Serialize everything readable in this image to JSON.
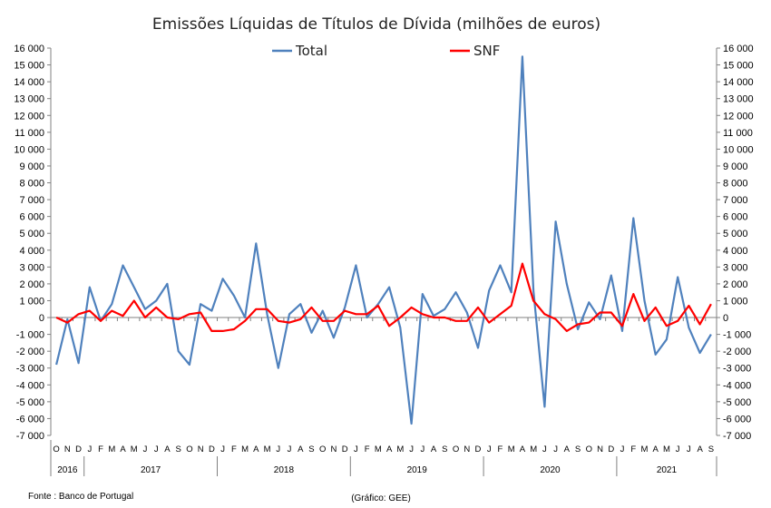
{
  "chart_data": {
    "type": "line",
    "title": "Emissões Líquidas de Títulos de Dívida (milhões de euros)",
    "source": "Fonte : Banco de Portugal",
    "credit": "(Gráfico: GEE)",
    "ylim": [
      -7000,
      16000
    ],
    "y_ticks": [
      16000,
      15000,
      14000,
      13000,
      12000,
      11000,
      10000,
      9000,
      8000,
      7000,
      6000,
      5000,
      4000,
      3000,
      2000,
      1000,
      0,
      -1000,
      -2000,
      -3000,
      -4000,
      -5000,
      -6000,
      -7000
    ],
    "y_tick_labels": [
      "16 000",
      "15 000",
      "14 000",
      "13 000",
      "12 000",
      "11 000",
      "10 000",
      "9 000",
      "8 000",
      "7 000",
      "6 000",
      "5 000",
      "4 000",
      "3 000",
      "2 000",
      "1 000",
      "0",
      "-1 000",
      "-2 000",
      "-3 000",
      "-4 000",
      "-5 000",
      "-6 000",
      "-7 000"
    ],
    "grid": false,
    "legend": "top-center",
    "categories": [
      "O",
      "N",
      "D",
      "J",
      "F",
      "M",
      "A",
      "M",
      "J",
      "J",
      "A",
      "S",
      "O",
      "N",
      "D",
      "J",
      "F",
      "M",
      "A",
      "M",
      "J",
      "J",
      "A",
      "S",
      "O",
      "N",
      "D",
      "J",
      "F",
      "M",
      "A",
      "M",
      "J",
      "J",
      "A",
      "S",
      "O",
      "N",
      "D",
      "J",
      "F",
      "M",
      "A",
      "M",
      "J",
      "J",
      "A",
      "S",
      "O",
      "N",
      "D",
      "J",
      "F",
      "M",
      "A",
      "M",
      "J",
      "J",
      "A",
      "S"
    ],
    "years": [
      {
        "label": "2016",
        "start": 0,
        "count": 3
      },
      {
        "label": "2017",
        "start": 3,
        "count": 12
      },
      {
        "label": "2018",
        "start": 15,
        "count": 12
      },
      {
        "label": "2019",
        "start": 27,
        "count": 12
      },
      {
        "label": "2020",
        "start": 39,
        "count": 12
      },
      {
        "label": "2021",
        "start": 51,
        "count": 9
      }
    ],
    "series": [
      {
        "name": "Total",
        "color": "#4f81bd",
        "values": [
          -2800,
          -100,
          -2700,
          1800,
          -200,
          800,
          3100,
          1800,
          500,
          1000,
          2000,
          -2000,
          -2800,
          800,
          400,
          2300,
          1300,
          0,
          4400,
          200,
          -3000,
          200,
          800,
          -900,
          400,
          -1200,
          600,
          3100,
          0,
          800,
          1800,
          -600,
          -6300,
          1400,
          100,
          500,
          1500,
          300,
          -1800,
          1600,
          3100,
          1500,
          15500,
          1600,
          -5300,
          5700,
          2000,
          -700,
          900,
          -100,
          2500,
          -800,
          5900,
          1000,
          -2200,
          -1300,
          2400,
          -600,
          -2100,
          -1000
        ]
      },
      {
        "name": "SNF",
        "color": "#ff0000",
        "values": [
          0,
          -300,
          200,
          400,
          -200,
          400,
          100,
          1000,
          0,
          600,
          0,
          -100,
          200,
          300,
          -800,
          -800,
          -700,
          -200,
          500,
          500,
          -200,
          -300,
          -100,
          600,
          -200,
          -200,
          400,
          200,
          200,
          700,
          -500,
          0,
          600,
          200,
          0,
          0,
          -200,
          -200,
          600,
          -300,
          200,
          700,
          3200,
          1000,
          200,
          -100,
          -800,
          -400,
          -300,
          300,
          300,
          -500,
          1400,
          -200,
          600,
          -500,
          -200,
          700,
          -400,
          800
        ]
      }
    ]
  }
}
